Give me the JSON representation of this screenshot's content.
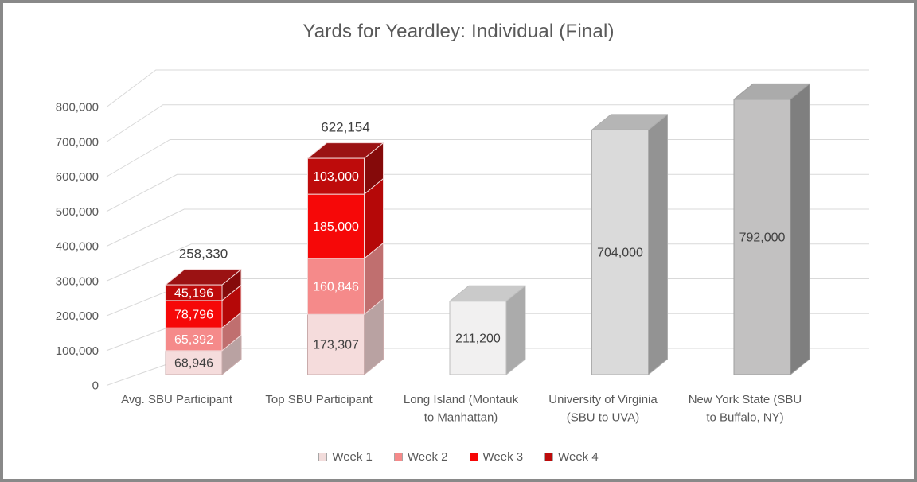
{
  "frame": {
    "border_color": "#898989",
    "background": "#FFFFFF"
  },
  "chart_data": {
    "type": "bar",
    "subtype": "3d-stacked-column",
    "title": "Yards for Yeardley: Individual (Final)",
    "xlabel": "",
    "ylabel": "",
    "ylim": [
      0,
      800000
    ],
    "ytick_interval": 100000,
    "grid": true,
    "legend_position": "bottom",
    "y_ticks": [
      {
        "value": 0,
        "label": "0"
      },
      {
        "value": 100000,
        "label": "100,000"
      },
      {
        "value": 200000,
        "label": "200,000"
      },
      {
        "value": 300000,
        "label": "300,000"
      },
      {
        "value": 400000,
        "label": "400,000"
      },
      {
        "value": 500000,
        "label": "500,000"
      },
      {
        "value": 600000,
        "label": "600,000"
      },
      {
        "value": 700000,
        "label": "700,000"
      },
      {
        "value": 800000,
        "label": "800,000"
      }
    ],
    "categories": [
      {
        "name": "Avg. SBU Participant",
        "lines": [
          "Avg. SBU Participant"
        ]
      },
      {
        "name": "Top SBU Participant",
        "lines": [
          "Top SBU Participant"
        ]
      },
      {
        "name": "Long Island (Montauk to Manhattan)",
        "lines": [
          "Long Island (Montauk",
          "to Manhattan)"
        ]
      },
      {
        "name": "University of Virginia (SBU to UVA)",
        "lines": [
          "University of Virginia",
          "(SBU to UVA)"
        ]
      },
      {
        "name": "New York State (SBU to Buffalo, NY)",
        "lines": [
          "New York State (SBU",
          "to Buffalo, NY)"
        ]
      }
    ],
    "series": [
      {
        "name": "Week 1",
        "color": "#F2DCDB",
        "values": [
          68946,
          173307,
          null,
          null,
          null
        ]
      },
      {
        "name": "Week 2",
        "color": "#F58A8A",
        "values": [
          65392,
          160846,
          null,
          null,
          null
        ]
      },
      {
        "name": "Week 3",
        "color": "#F60606",
        "values": [
          78796,
          185000,
          null,
          null,
          null
        ]
      },
      {
        "name": "Week 4",
        "color": "#BE0B0B",
        "values": [
          45196,
          103000,
          null,
          null,
          null
        ]
      },
      {
        "name": "Reference distance (no legend entry)",
        "color": "#D9D9D9",
        "values": [
          null,
          null,
          211200,
          704000,
          792000
        ]
      }
    ],
    "bars": [
      {
        "kind": "stacked",
        "total": 258330,
        "total_label": "258,330",
        "segments": [
          {
            "series": "Week 1",
            "value": 68946,
            "label": "68,946"
          },
          {
            "series": "Week 2",
            "value": 65392,
            "label": "65,392"
          },
          {
            "series": "Week 3",
            "value": 78796,
            "label": "78,796"
          },
          {
            "series": "Week 4",
            "value": 45196,
            "label": "45,196"
          }
        ]
      },
      {
        "kind": "stacked",
        "total": 622154,
        "total_label": "622,154",
        "segments": [
          {
            "series": "Week 1",
            "value": 173307,
            "label": "173,307"
          },
          {
            "series": "Week 2",
            "value": 160846,
            "label": "160,846"
          },
          {
            "series": "Week 3",
            "value": 185000,
            "label": "185,000"
          },
          {
            "series": "Week 4",
            "value": 103000,
            "label": "103,000"
          }
        ]
      },
      {
        "kind": "plain",
        "value": 211200,
        "label": "211,200",
        "shade": 0
      },
      {
        "kind": "plain",
        "value": 704000,
        "label": "704,000",
        "shade": 1
      },
      {
        "kind": "plain",
        "value": 792000,
        "label": "792,000",
        "shade": 2
      }
    ],
    "palette": {
      "weeks": [
        {
          "front": "#F5DCDC",
          "side": "#B9A2A2",
          "stroke": "#C9ABAB",
          "label_color": "#404040"
        },
        {
          "front": "#F58A8A",
          "side": "#C06F6F",
          "stroke": "#F2D8D8",
          "label_color": "#FFFFFF"
        },
        {
          "front": "#F60808",
          "side": "#B50808",
          "stroke": "#F2D8D8",
          "label_color": "#FFFFFF"
        },
        {
          "front": "#BE0B0B",
          "side": "#850A0A",
          "top": "#9B1213",
          "stroke": "#F2D8D8",
          "label_color": "#FFFFFF"
        }
      ],
      "grays": [
        {
          "front": "#F1F0F0",
          "side": "#ABABAB",
          "top": "#CACACA",
          "stroke": "#BDBDBD"
        },
        {
          "front": "#DADADA",
          "side": "#939393",
          "top": "#B5B5B5",
          "stroke": "#ADADAD"
        },
        {
          "front": "#C2C1C1",
          "side": "#7F7F7F",
          "top": "#ABABAB",
          "stroke": "#9E9E9E"
        }
      ],
      "gridline": "#D9D9D9",
      "axis_text": "#595959",
      "title_text": "#595959",
      "value_text_dark": "#3F3F3F"
    }
  },
  "legend": {
    "items": [
      {
        "label": "Week 1",
        "color": "#F2DCDB"
      },
      {
        "label": "Week 2",
        "color": "#F58A8A"
      },
      {
        "label": "Week 3",
        "color": "#F60606"
      },
      {
        "label": "Week 4",
        "color": "#BE0B0B"
      }
    ]
  }
}
